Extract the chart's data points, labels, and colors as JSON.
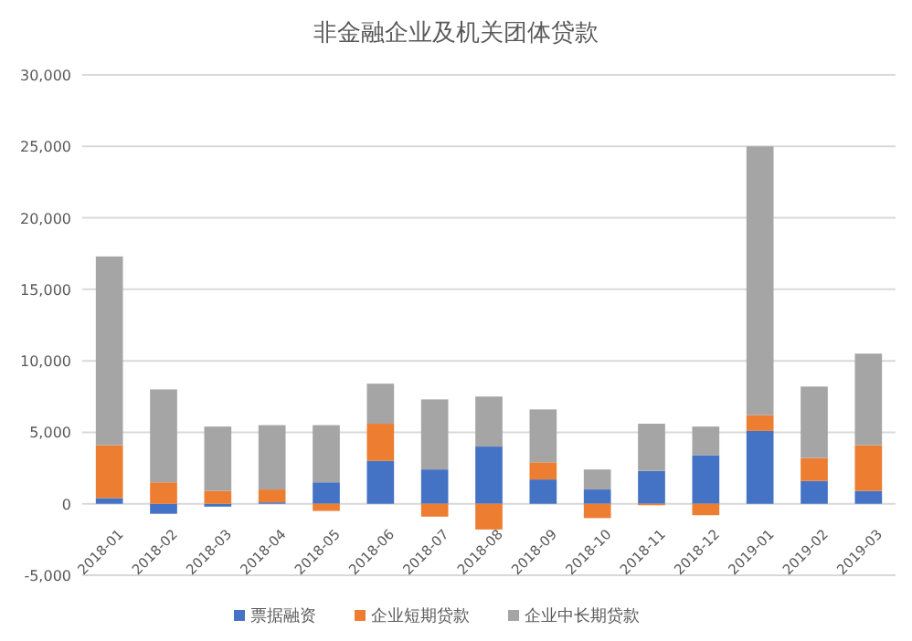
{
  "chart_data": {
    "type": "bar",
    "title": "非金融企业及机关团体贷款",
    "stacked": true,
    "categories": [
      "2018-01",
      "2018-02",
      "2018-03",
      "2018-04",
      "2018-05",
      "2018-06",
      "2018-07",
      "2018-08",
      "2018-09",
      "2018-10",
      "2018-11",
      "2018-12",
      "2019-01",
      "2019-02",
      "2019-03"
    ],
    "series": [
      {
        "name": "票据融资",
        "color": "#4472c4",
        "values": [
          400,
          -700,
          -200,
          100,
          1500,
          3000,
          2400,
          4000,
          1700,
          1000,
          2300,
          3400,
          5100,
          1600,
          900
        ]
      },
      {
        "name": "企业短期贷款",
        "color": "#ed7d31",
        "values": [
          3700,
          1500,
          900,
          900,
          -500,
          2600,
          -900,
          -1800,
          1200,
          -1000,
          -100,
          -800,
          1100,
          1600,
          3200
        ]
      },
      {
        "name": "企业中长期贷款",
        "color": "#a5a5a5",
        "values": [
          13200,
          6500,
          4500,
          4500,
          4000,
          2800,
          4900,
          3500,
          3700,
          1400,
          3300,
          2000,
          18800,
          5000,
          6400
        ]
      }
    ],
    "ylim": [
      -5000,
      30000
    ],
    "yticks": [
      {
        "value": -5000,
        "label": "-5,000"
      },
      0,
      {
        "value": 5000,
        "label": "5,000"
      },
      {
        "value": 10000,
        "label": "10,000"
      },
      {
        "value": 15000,
        "label": "15,000"
      },
      {
        "value": 20000,
        "label": "20,000"
      },
      {
        "value": 25000,
        "label": "25,000"
      },
      {
        "value": 30000,
        "label": "30,000"
      }
    ],
    "grid": "y",
    "legend": "bottom"
  }
}
